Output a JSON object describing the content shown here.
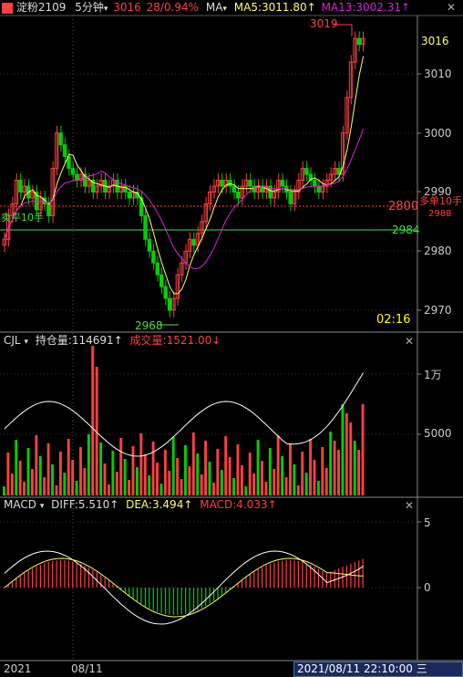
{
  "header": {
    "symbol": "淀粉2109",
    "period": "5分钟",
    "last": "3016",
    "change": "28/0.94%",
    "ma_label": "MA",
    "ma5": "MA5:3011.80↑",
    "ma13": "MA13:3002.31↑"
  },
  "main_chart": {
    "y_labels": [
      "3016",
      "3010",
      "3000",
      "2990",
      "2980",
      "2970"
    ],
    "high_label": "3019",
    "low_label": "2968",
    "time_label": "02:16",
    "line_2800": "2800",
    "line_2984": "2984",
    "long_label": "多单10手",
    "long_price": "2988",
    "short_label": "卖平10手",
    "colors": {
      "up": "#ff3b3b",
      "down": "#00c000",
      "ma5": "#ffff66",
      "ma13": "#e020e0"
    }
  },
  "cjl_panel": {
    "name": "CJL",
    "oi_label": "持仓量:114691↑",
    "vol_label": "成交量:1521.00↓",
    "y_labels": [
      "1万",
      "5000"
    ]
  },
  "macd_panel": {
    "name": "MACD",
    "diff": "DIFF:5.510↑",
    "dea": "DEA:3.494↑",
    "macd": "MACD:4.033↑",
    "y_labels": [
      "5",
      "0"
    ]
  },
  "footer": {
    "year": "2021",
    "date": "08/11",
    "cursor_time": "2021/08/11 22:10:00 三"
  }
}
